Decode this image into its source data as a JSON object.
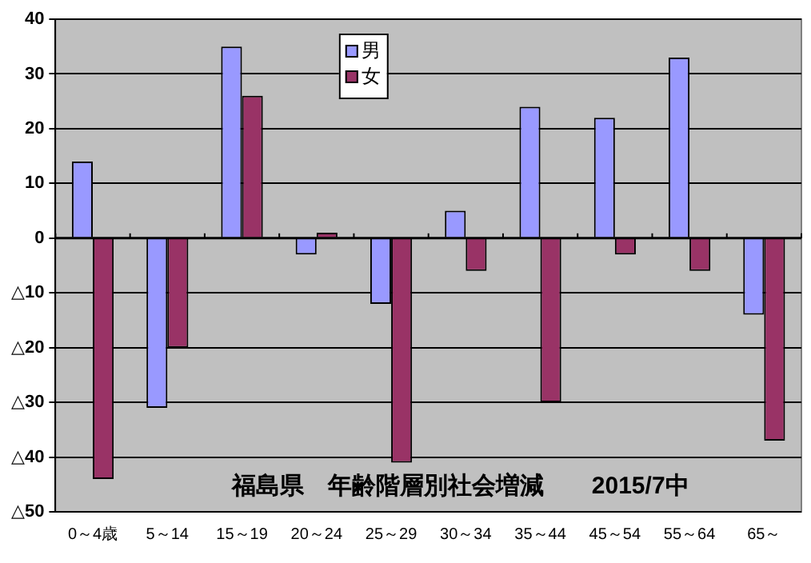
{
  "chart_data": {
    "type": "bar",
    "title": "福島県　年齢階層別社会増減　　2015/7中",
    "categories": [
      "0～4歳",
      "5～14",
      "15～19",
      "20～24",
      "25～29",
      "30～34",
      "35～44",
      "45～54",
      "55～64",
      "65～"
    ],
    "series": [
      {
        "name": "男",
        "color": "#9999ff",
        "values": [
          14,
          -31,
          35,
          -3,
          -12,
          5,
          24,
          22,
          33,
          -14
        ]
      },
      {
        "name": "女",
        "color": "#993366",
        "values": [
          -44,
          -20,
          26,
          1,
          -41,
          -6,
          -30,
          -3,
          -6,
          -37
        ]
      }
    ],
    "ylim": [
      -50,
      40
    ],
    "yticks": [
      {
        "value": -50,
        "label": "△50"
      },
      {
        "value": -40,
        "label": "△40"
      },
      {
        "value": -30,
        "label": "△30"
      },
      {
        "value": -20,
        "label": "△20"
      },
      {
        "value": -10,
        "label": "△10"
      },
      0,
      10,
      20,
      30,
      40
    ],
    "grid": "y",
    "legend": "top"
  }
}
